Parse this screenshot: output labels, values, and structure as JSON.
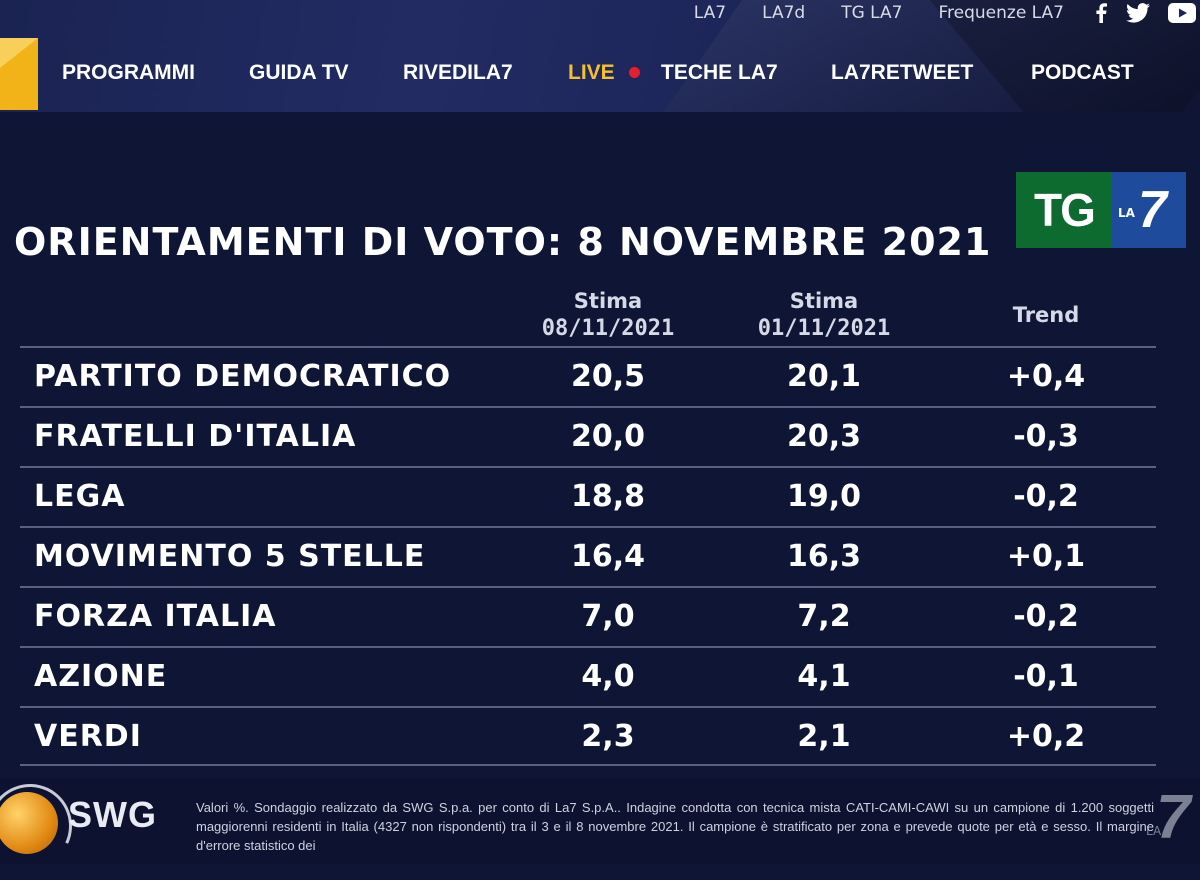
{
  "header": {
    "top_links": [
      "LA7",
      "LA7d",
      "TG LA7",
      "Frequenze LA7"
    ],
    "social_icons": [
      "facebook-icon",
      "twitter-icon",
      "youtube-icon"
    ],
    "nav": [
      "PROGRAMMI",
      "GUIDA TV",
      "RIVEDILA7",
      "LIVE",
      "TECHE LA7",
      "LA7RETWEET",
      "PODCAST"
    ],
    "accent_color": "#f5c030",
    "live_dot_color": "#e5202a"
  },
  "badge": {
    "tg": "TG",
    "la": "LA",
    "seven": "7"
  },
  "poll": {
    "title": "ORIENTAMENTI DI VOTO: 8 NOVEMBRE 2021",
    "columns": [
      {
        "label": "Stima",
        "date": "08/11/2021"
      },
      {
        "label": "Stima",
        "date": "01/11/2021"
      },
      {
        "label": "Trend",
        "date": ""
      }
    ],
    "rows": [
      {
        "party": "PARTITO DEMOCRATICO",
        "current": "20,5",
        "previous": "20,1",
        "trend": "+0,4"
      },
      {
        "party": "FRATELLI D'ITALIA",
        "current": "20,0",
        "previous": "20,3",
        "trend": "-0,3"
      },
      {
        "party": "LEGA",
        "current": "18,8",
        "previous": "19,0",
        "trend": "-0,2"
      },
      {
        "party": "MOVIMENTO 5 STELLE",
        "current": "16,4",
        "previous": "16,3",
        "trend": "+0,1"
      },
      {
        "party": "FORZA ITALIA",
        "current": "7,0",
        "previous": "7,2",
        "trend": "-0,2"
      },
      {
        "party": "AZIONE",
        "current": "4,0",
        "previous": "4,1",
        "trend": "-0,1"
      },
      {
        "party": "VERDI",
        "current": "2,3",
        "previous": "2,1",
        "trend": "+0,2"
      }
    ]
  },
  "footer": {
    "swg_logo": "SWG",
    "note": "Valori %. Sondaggio realizzato da SWG S.p.a. per conto di La7 S.p.A.. Indagine condotta con tecnica mista CATI-CAMI-CAWI su un campione di 1.200 soggetti maggiorenni residenti in Italia (4327 non rispondenti) tra il 3 e il 8 novembre 2021. Il campione è stratificato per zona e prevede quote per età e sesso. Il margine d'errore statistico dei",
    "watermark": "LA 7"
  }
}
